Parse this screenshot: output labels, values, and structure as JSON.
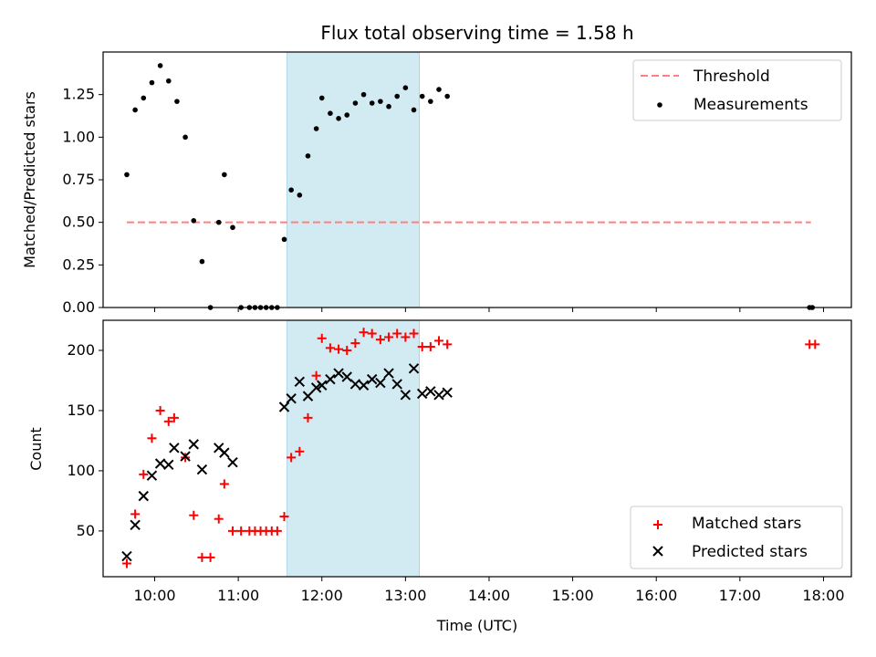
{
  "figure": {
    "title": "Flux total observing time = 1.58 h"
  },
  "chart_data": [
    {
      "type": "scatter",
      "panel": "top",
      "ylabel": "Matched/Predicted stars",
      "xlabel": "",
      "xlim": [
        "09:23",
        "18:20"
      ],
      "ylim": [
        0,
        1.5
      ],
      "yticks": [
        "0.00",
        "0.25",
        "0.50",
        "0.75",
        "1.00",
        "1.25"
      ],
      "highlight_span": {
        "start": "11:35",
        "end": "13:10",
        "color": "#add8e6"
      },
      "threshold": {
        "name": "Threshold",
        "y": 0.5,
        "x_start": "09:40",
        "x_end": "17:51",
        "color": "#ff7f7f",
        "style": "dashed"
      },
      "legend": {
        "placement": "upper right",
        "entries": [
          "Threshold",
          "Measurements"
        ]
      },
      "series": [
        {
          "name": "Measurements",
          "color": "#000000",
          "marker": "dot",
          "points": [
            [
              "09:40",
              0.78
            ],
            [
              "09:46",
              1.16
            ],
            [
              "09:52",
              1.23
            ],
            [
              "09:58",
              1.32
            ],
            [
              "10:04",
              1.42
            ],
            [
              "10:10",
              1.33
            ],
            [
              "10:16",
              1.21
            ],
            [
              "10:22",
              1.0
            ],
            [
              "10:28",
              0.51
            ],
            [
              "10:34",
              0.27
            ],
            [
              "10:40",
              0.0
            ],
            [
              "10:46",
              0.5
            ],
            [
              "10:50",
              0.78
            ],
            [
              "10:56",
              0.47
            ],
            [
              "11:02",
              0.0
            ],
            [
              "11:08",
              0.0
            ],
            [
              "11:12",
              0.0
            ],
            [
              "11:16",
              0.0
            ],
            [
              "11:20",
              0.0
            ],
            [
              "11:24",
              0.0
            ],
            [
              "11:28",
              0.0
            ],
            [
              "11:33",
              0.4
            ],
            [
              "11:38",
              0.69
            ],
            [
              "11:44",
              0.66
            ],
            [
              "11:50",
              0.89
            ],
            [
              "11:56",
              1.05
            ],
            [
              "12:00",
              1.23
            ],
            [
              "12:06",
              1.14
            ],
            [
              "12:12",
              1.11
            ],
            [
              "12:18",
              1.13
            ],
            [
              "12:24",
              1.2
            ],
            [
              "12:30",
              1.25
            ],
            [
              "12:36",
              1.2
            ],
            [
              "12:42",
              1.21
            ],
            [
              "12:48",
              1.18
            ],
            [
              "12:54",
              1.24
            ],
            [
              "13:00",
              1.29
            ],
            [
              "13:06",
              1.16
            ],
            [
              "13:12",
              1.24
            ],
            [
              "13:18",
              1.21
            ],
            [
              "13:24",
              1.28
            ],
            [
              "13:30",
              1.24
            ],
            [
              "17:50",
              0.0
            ],
            [
              "17:52",
              0.0
            ]
          ]
        }
      ]
    },
    {
      "type": "scatter",
      "panel": "bottom",
      "ylabel": "Count",
      "xlabel": "Time (UTC)",
      "xlim": [
        "09:23",
        "18:20"
      ],
      "ylim": [
        12,
        225
      ],
      "yticks": [
        "50",
        "100",
        "150",
        "200"
      ],
      "xticks": [
        "10:00",
        "11:00",
        "12:00",
        "13:00",
        "14:00",
        "15:00",
        "16:00",
        "17:00",
        "18:00"
      ],
      "highlight_span": {
        "start": "11:35",
        "end": "13:10",
        "color": "#add8e6"
      },
      "legend": {
        "placement": "lower right",
        "entries": [
          "Matched stars",
          "Predicted stars"
        ]
      },
      "series": [
        {
          "name": "Matched stars",
          "color": "#ff0000",
          "marker": "plus",
          "points": [
            [
              "09:40",
              23
            ],
            [
              "09:46",
              64
            ],
            [
              "09:52",
              97
            ],
            [
              "09:58",
              127
            ],
            [
              "10:04",
              150
            ],
            [
              "10:10",
              141
            ],
            [
              "10:14",
              144
            ],
            [
              "10:22",
              111
            ],
            [
              "10:28",
              63
            ],
            [
              "10:34",
              28
            ],
            [
              "10:40",
              28
            ],
            [
              "10:46",
              60
            ],
            [
              "10:50",
              89
            ],
            [
              "10:56",
              50
            ],
            [
              "11:02",
              50
            ],
            [
              "11:08",
              50
            ],
            [
              "11:12",
              50
            ],
            [
              "11:16",
              50
            ],
            [
              "11:20",
              50
            ],
            [
              "11:24",
              50
            ],
            [
              "11:28",
              50
            ],
            [
              "11:33",
              62
            ],
            [
              "11:38",
              111
            ],
            [
              "11:44",
              116
            ],
            [
              "11:50",
              144
            ],
            [
              "11:56",
              179
            ],
            [
              "12:00",
              210
            ],
            [
              "12:06",
              202
            ],
            [
              "12:12",
              201
            ],
            [
              "12:18",
              200
            ],
            [
              "12:24",
              206
            ],
            [
              "12:30",
              215
            ],
            [
              "12:36",
              214
            ],
            [
              "12:42",
              209
            ],
            [
              "12:48",
              211
            ],
            [
              "12:54",
              214
            ],
            [
              "13:00",
              211
            ],
            [
              "13:06",
              214
            ],
            [
              "13:12",
              203
            ],
            [
              "13:18",
              203
            ],
            [
              "13:24",
              208
            ],
            [
              "13:30",
              205
            ],
            [
              "17:50",
              205
            ],
            [
              "17:54",
              205
            ]
          ]
        },
        {
          "name": "Predicted stars",
          "color": "#000000",
          "marker": "x",
          "points": [
            [
              "09:40",
              29
            ],
            [
              "09:46",
              55
            ],
            [
              "09:52",
              79
            ],
            [
              "09:58",
              96
            ],
            [
              "10:04",
              106
            ],
            [
              "10:10",
              105
            ],
            [
              "10:14",
              119
            ],
            [
              "10:22",
              112
            ],
            [
              "10:28",
              122
            ],
            [
              "10:34",
              101
            ],
            [
              "10:46",
              119
            ],
            [
              "10:50",
              115
            ],
            [
              "10:56",
              107
            ],
            [
              "11:33",
              153
            ],
            [
              "11:38",
              160
            ],
            [
              "11:44",
              174
            ],
            [
              "11:50",
              162
            ],
            [
              "11:56",
              169
            ],
            [
              "12:00",
              171
            ],
            [
              "12:06",
              176
            ],
            [
              "12:12",
              181
            ],
            [
              "12:18",
              178
            ],
            [
              "12:24",
              172
            ],
            [
              "12:30",
              171
            ],
            [
              "12:36",
              176
            ],
            [
              "12:42",
              173
            ],
            [
              "12:48",
              181
            ],
            [
              "12:54",
              172
            ],
            [
              "13:00",
              163
            ],
            [
              "13:06",
              185
            ],
            [
              "13:12",
              164
            ],
            [
              "13:18",
              166
            ],
            [
              "13:24",
              163
            ],
            [
              "13:30",
              165
            ]
          ]
        }
      ]
    }
  ]
}
